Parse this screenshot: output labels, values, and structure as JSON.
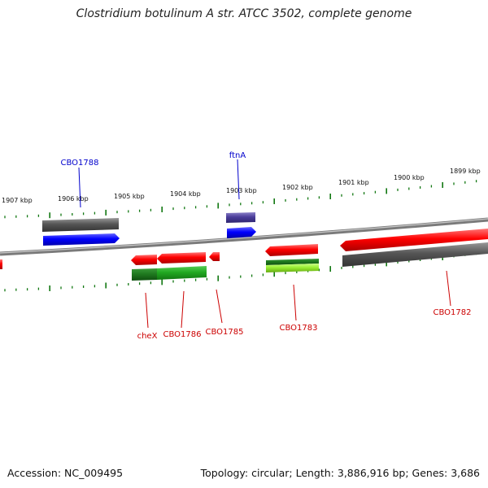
{
  "title": "Clostridium botulinum A str. ATCC 3502, complete genome",
  "footer": {
    "accession": "Accession: NC_009495",
    "summary": "Topology: circular; Length: 3,886,916 bp; Genes: 3,686"
  },
  "scale_labels": [
    "1907 kbp",
    "1906 kbp",
    "1905 kbp",
    "1904 kbp",
    "1903 kbp",
    "1902 kbp",
    "1901 kbp",
    "1900 kbp",
    "1899 kbp"
  ],
  "gene_labels": [
    {
      "text": "CBO1788",
      "color": "#0000cc"
    },
    {
      "text": "ftnA",
      "color": "#0000cc"
    },
    {
      "text": "cheX",
      "color": "#cc0000"
    },
    {
      "text": "CBO1786",
      "color": "#cc0000"
    },
    {
      "text": "CBO1785",
      "color": "#cc0000"
    },
    {
      "text": "CBO1783",
      "color": "#cc0000"
    },
    {
      "text": "CBO1782",
      "color": "#cc0000"
    }
  ],
  "colors": {
    "forward_gene": "#0000ff",
    "forward_gene_alt": "#4b3d9a",
    "reverse_gene": "#ff0000",
    "cog_grey": "#555555",
    "cog_green": "#22aa22",
    "cog_lightgreen": "#99ee33",
    "backbone": "#888888",
    "tick": "#117711"
  }
}
